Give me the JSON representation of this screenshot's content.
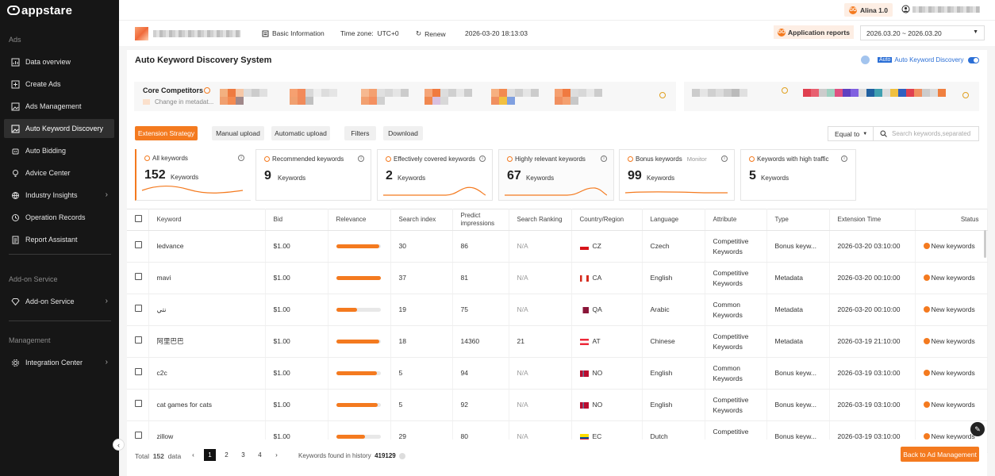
{
  "app": {
    "logo": "appstare"
  },
  "sidebar": {
    "section_ads": "Ads",
    "items": [
      {
        "label": "Data overview",
        "icon": "bar-chart-icon"
      },
      {
        "label": "Create Ads",
        "icon": "plus-square-icon"
      },
      {
        "label": "Ads Management",
        "icon": "image-icon"
      },
      {
        "label": "Auto Keyword Discovery",
        "icon": "image-icon",
        "active": true
      },
      {
        "label": "Auto Bidding",
        "icon": "robot-icon"
      },
      {
        "label": "Advice Center",
        "icon": "bulb-icon"
      },
      {
        "label": "Industry Insights",
        "icon": "globe-icon"
      },
      {
        "label": "Operation Records",
        "icon": "history-icon"
      },
      {
        "label": "Report Assistant",
        "icon": "report-icon"
      }
    ],
    "section_addon": "Add-on Service",
    "addon_item": "Add-on Service",
    "section_management": "Management",
    "integration_item": "Integration Center"
  },
  "topbar": {
    "ai_label": "Alina 1.0"
  },
  "infobar": {
    "basic_info": "Basic Information",
    "timezone_label": "Time zone:",
    "timezone_value": "UTC+0",
    "renew": "Renew",
    "timestamp": "2026-03-20 18:13:03",
    "app_reports": "Application reports",
    "date_range": "2026.03.20 ~ 2026.03.20"
  },
  "page": {
    "title": "Auto Keyword Discovery System",
    "auto_tag": "Auto",
    "auto_label": "Auto Keyword Discovery",
    "core_competitors": "Core Competitors",
    "competitors_sub": "Change in metadat..."
  },
  "toolbar": {
    "extension_strategy": "Extension Strategy",
    "manual_upload": "Manual upload",
    "automatic_upload": "Automatic upload",
    "filters": "Filters",
    "download": "Download",
    "equal_to": "Equal to",
    "search_placeholder": "Search keywords,separated"
  },
  "cards": [
    {
      "title": "All keywords",
      "num": "152",
      "unit": "Keywords"
    },
    {
      "title": "Recommended keywords",
      "num": "9",
      "unit": "Keywords"
    },
    {
      "title": "Effectively covered keywords",
      "num": "2",
      "unit": "Keywords"
    },
    {
      "title": "Highly relevant keywords",
      "num": "67",
      "unit": "Keywords"
    },
    {
      "title": "Bonus keywords",
      "num": "99",
      "unit": "Keywords",
      "monitor": "Monitor"
    },
    {
      "title": "Keywords with high traffic",
      "num": "5",
      "unit": "Keywords"
    }
  ],
  "table": {
    "headers": [
      "Keyword",
      "Bid",
      "Relevance",
      "Search index",
      "Predict impressions",
      "Search Ranking",
      "Country/Region",
      "Language",
      "Attribute",
      "Type",
      "Extension Time",
      "Status"
    ],
    "rows": [
      {
        "keyword": "ledvance",
        "bid": "$1.00",
        "rel": 0.97,
        "index": "30",
        "impr": "86",
        "rank": "N/A",
        "country": "CZ",
        "lang": "Czech",
        "attr": "Competitive Keywords",
        "type": "Bonus keyw...",
        "time": "2026-03-20 03:10:00",
        "status": "New keywords"
      },
      {
        "keyword": "mavi",
        "bid": "$1.00",
        "rel": 1.0,
        "index": "37",
        "impr": "81",
        "rank": "N/A",
        "country": "CA",
        "lang": "English",
        "attr": "Competitive Keywords",
        "type": "Metadata",
        "time": "2026-03-20 00:10:00",
        "status": "New keywords"
      },
      {
        "keyword": "نتي",
        "bid": "$1.00",
        "rel": 0.48,
        "index": "19",
        "impr": "75",
        "rank": "N/A",
        "country": "QA",
        "lang": "Arabic",
        "attr": "Common Keywords",
        "type": "Metadata",
        "time": "2026-03-20 00:10:00",
        "status": "New keywords"
      },
      {
        "keyword": "阿里巴巴",
        "bid": "$1.00",
        "rel": 0.97,
        "index": "18",
        "impr": "14360",
        "rank": "21",
        "country": "AT",
        "lang": "Chinese",
        "attr": "Competitive Keywords",
        "type": "Metadata",
        "time": "2026-03-19 21:10:00",
        "status": "New keywords"
      },
      {
        "keyword": "c2c",
        "bid": "$1.00",
        "rel": 0.92,
        "index": "5",
        "impr": "94",
        "rank": "N/A",
        "country": "NO",
        "lang": "English",
        "attr": "Common Keywords",
        "type": "Bonus keyw...",
        "time": "2026-03-19 03:10:00",
        "status": "New keywords"
      },
      {
        "keyword": "cat games for cats",
        "bid": "$1.00",
        "rel": 0.93,
        "index": "5",
        "impr": "92",
        "rank": "N/A",
        "country": "NO",
        "lang": "English",
        "attr": "Competitive Keywords",
        "type": "Bonus keyw...",
        "time": "2026-03-19 03:10:00",
        "status": "New keywords"
      },
      {
        "keyword": "zillow",
        "bid": "$1.00",
        "rel": 0.65,
        "index": "29",
        "impr": "80",
        "rank": "N/A",
        "country": "EC",
        "lang": "Dutch",
        "attr": "Competitive Keywords",
        "type": "Bonus keyw...",
        "time": "2026-03-19 03:10:00",
        "status": "New keywords"
      }
    ]
  },
  "footer": {
    "total_label": "Total",
    "total_value": "152",
    "total_unit": "data",
    "pages": [
      "1",
      "2",
      "3",
      "4"
    ],
    "history_label": "Keywords found in history",
    "history_value": "419129",
    "back_button": "Back to Ad Management"
  },
  "colors": {
    "accent": "#f47a1f",
    "sidebar": "#161616",
    "blue": "#2b6fd6"
  }
}
